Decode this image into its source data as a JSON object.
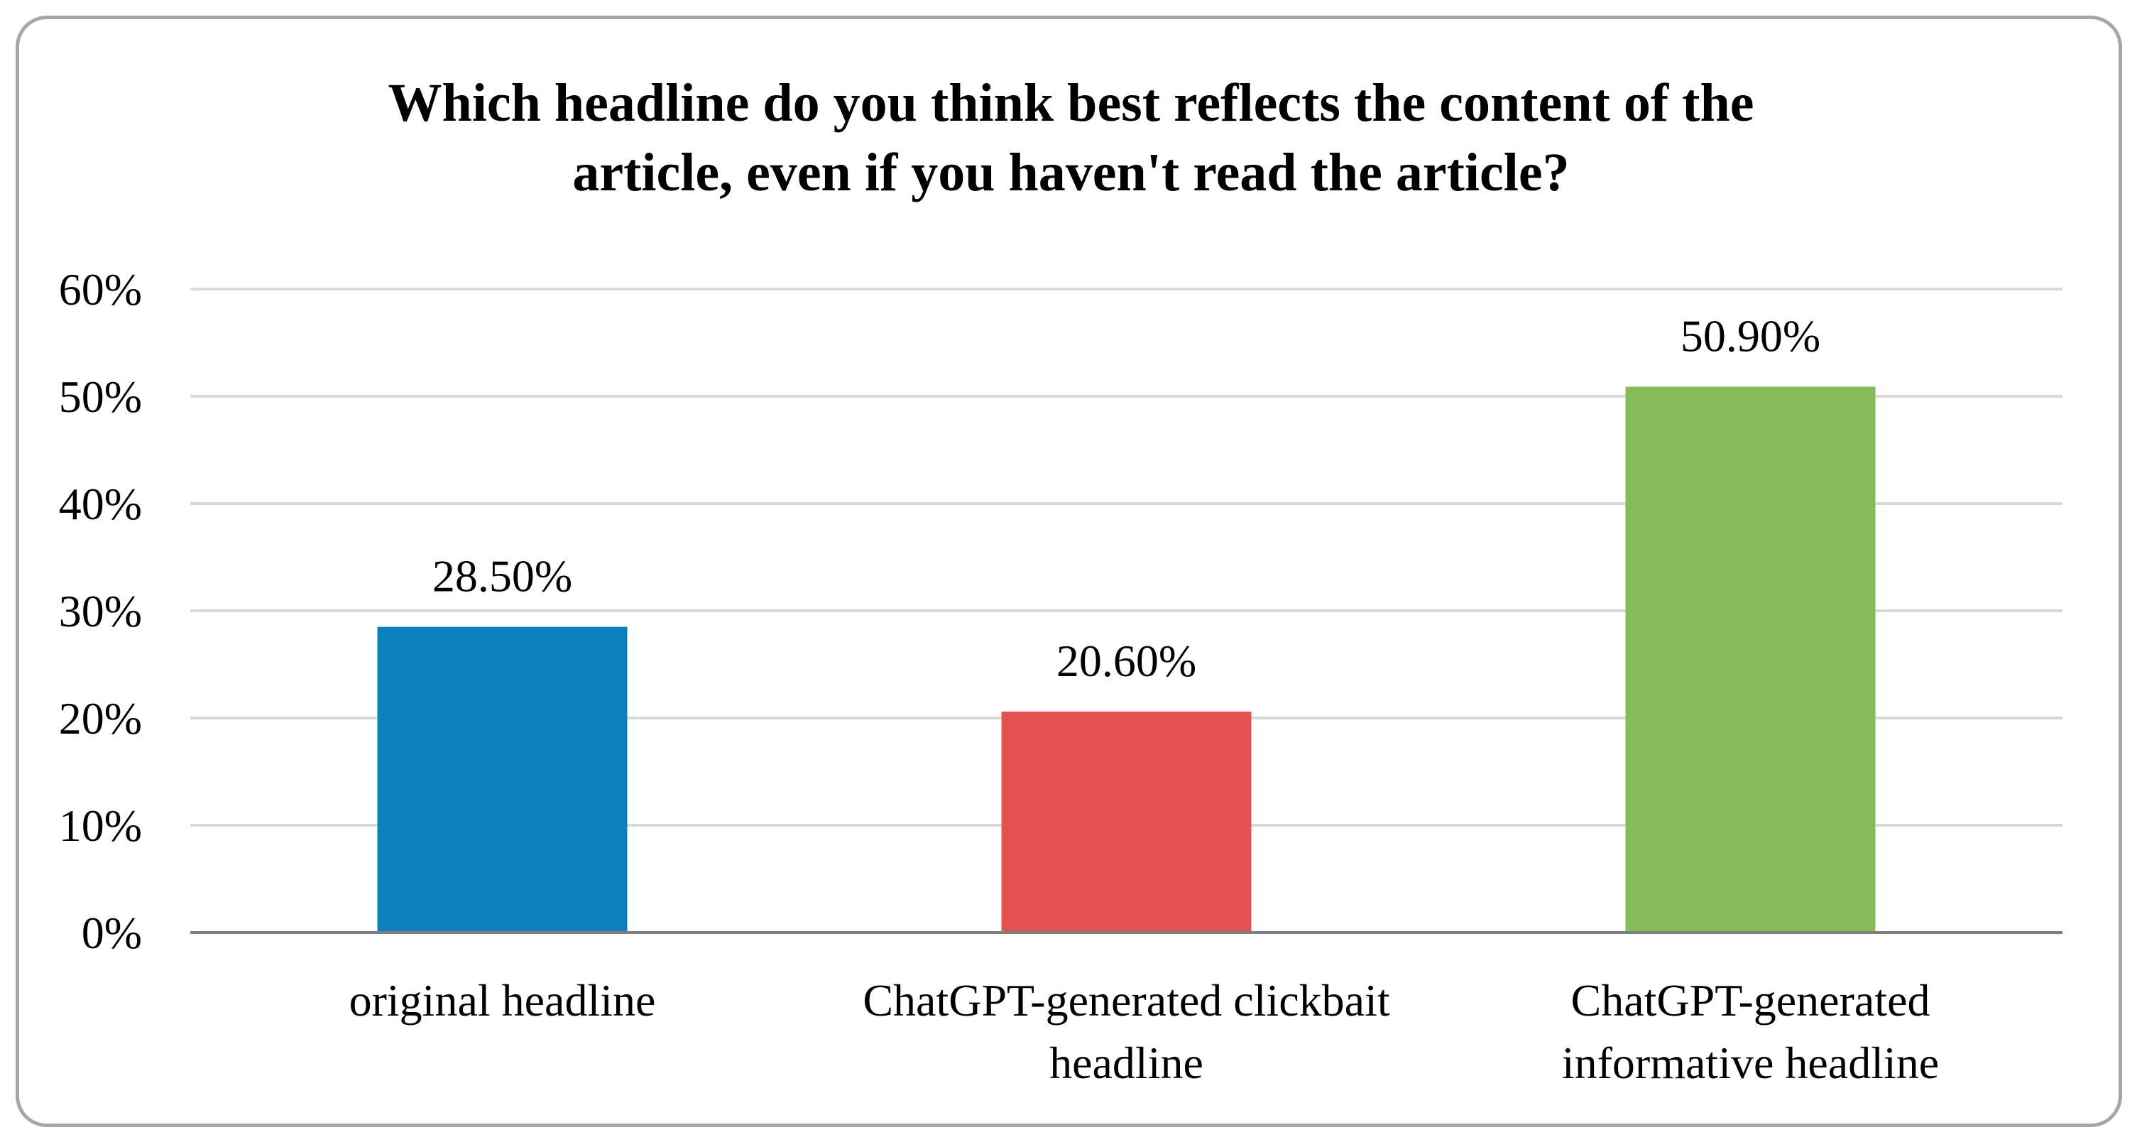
{
  "chart_data": {
    "type": "bar",
    "title_lines": [
      "Which headline do you think best reflects the content of the",
      "article, even if you haven't read the article?"
    ],
    "categories": [
      [
        "original headline"
      ],
      [
        "ChatGPT-generated clickbait",
        "headline"
      ],
      [
        "ChatGPT-generated",
        "informative headline"
      ]
    ],
    "values": [
      28.5,
      20.6,
      50.9
    ],
    "data_labels": [
      "28.50%",
      "20.60%",
      "50.90%"
    ],
    "colors": [
      "#0b80bf",
      "#e35150",
      "#85bb58"
    ],
    "ylim": [
      0,
      60
    ],
    "yticks": [
      0,
      10,
      20,
      30,
      40,
      50,
      60
    ],
    "ytick_labels": [
      "0%",
      "10%",
      "20%",
      "30%",
      "40%",
      "50%",
      "60%"
    ],
    "grid": true,
    "grid_color": "#d9d9d9",
    "axis_color": "#7f7f7f",
    "frame_color": "#a6a6a6"
  }
}
